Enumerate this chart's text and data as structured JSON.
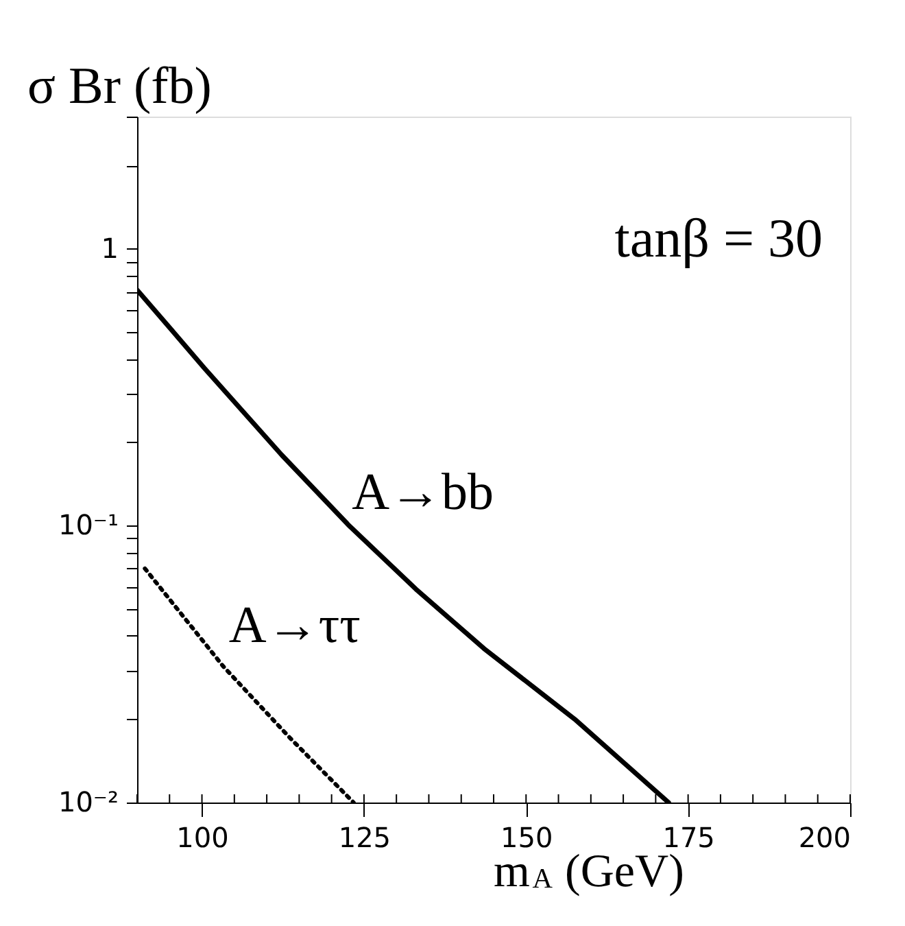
{
  "chart_data": {
    "type": "line",
    "ylabel": "σ Br  (fb)",
    "xlabel": "m$_{A}$ (GeV)",
    "annotations": [
      "tanβ = 30"
    ],
    "log": "y",
    "grid": false,
    "legend": false,
    "marker": "none",
    "xlim": [
      90,
      200
    ],
    "xticks": [
      100,
      125,
      150,
      175,
      200
    ],
    "ylim": [
      0.01,
      3
    ],
    "yticks": [
      {
        "value": 0.01,
        "label": "10⁻²"
      },
      {
        "value": 0.02,
        "label": null
      },
      {
        "value": 0.03,
        "label": null
      },
      {
        "value": 0.04,
        "label": null
      },
      {
        "value": 0.05,
        "label": null
      },
      {
        "value": 0.06,
        "label": null
      },
      {
        "value": 0.07,
        "label": null
      },
      {
        "value": 0.08,
        "label": null
      },
      {
        "value": 0.09,
        "label": null
      },
      {
        "value": 0.1,
        "label": "10⁻¹"
      },
      {
        "value": 0.2,
        "label": null
      },
      {
        "value": 0.3,
        "label": null
      },
      {
        "value": 0.4,
        "label": null
      },
      {
        "value": 0.5,
        "label": null
      },
      {
        "value": 0.6,
        "label": null
      },
      {
        "value": 0.7,
        "label": null
      },
      {
        "value": 0.8,
        "label": null
      },
      {
        "value": 0.9,
        "label": null
      },
      {
        "value": 1,
        "label": "1"
      },
      {
        "value": 2,
        "label": null
      },
      {
        "value": 3,
        "label": null
      }
    ],
    "series": [
      {
        "name": "A→bb",
        "color": "#000000",
        "line_style": "solid",
        "x": [
          90,
          100.4,
          112.3,
          122.7,
          133,
          143.5,
          157.5,
          172
        ],
        "values": [
          0.71,
          0.37,
          0.18,
          0.1,
          0.059,
          0.036,
          0.02,
          0.01
        ]
      },
      {
        "name": "A→ττ",
        "color": "#000000",
        "line_style": "dotted",
        "x": [
          91.2,
          103.3,
          113.7,
          123.4
        ],
        "values": [
          0.07,
          0.031,
          0.017,
          0.01
        ]
      }
    ]
  }
}
